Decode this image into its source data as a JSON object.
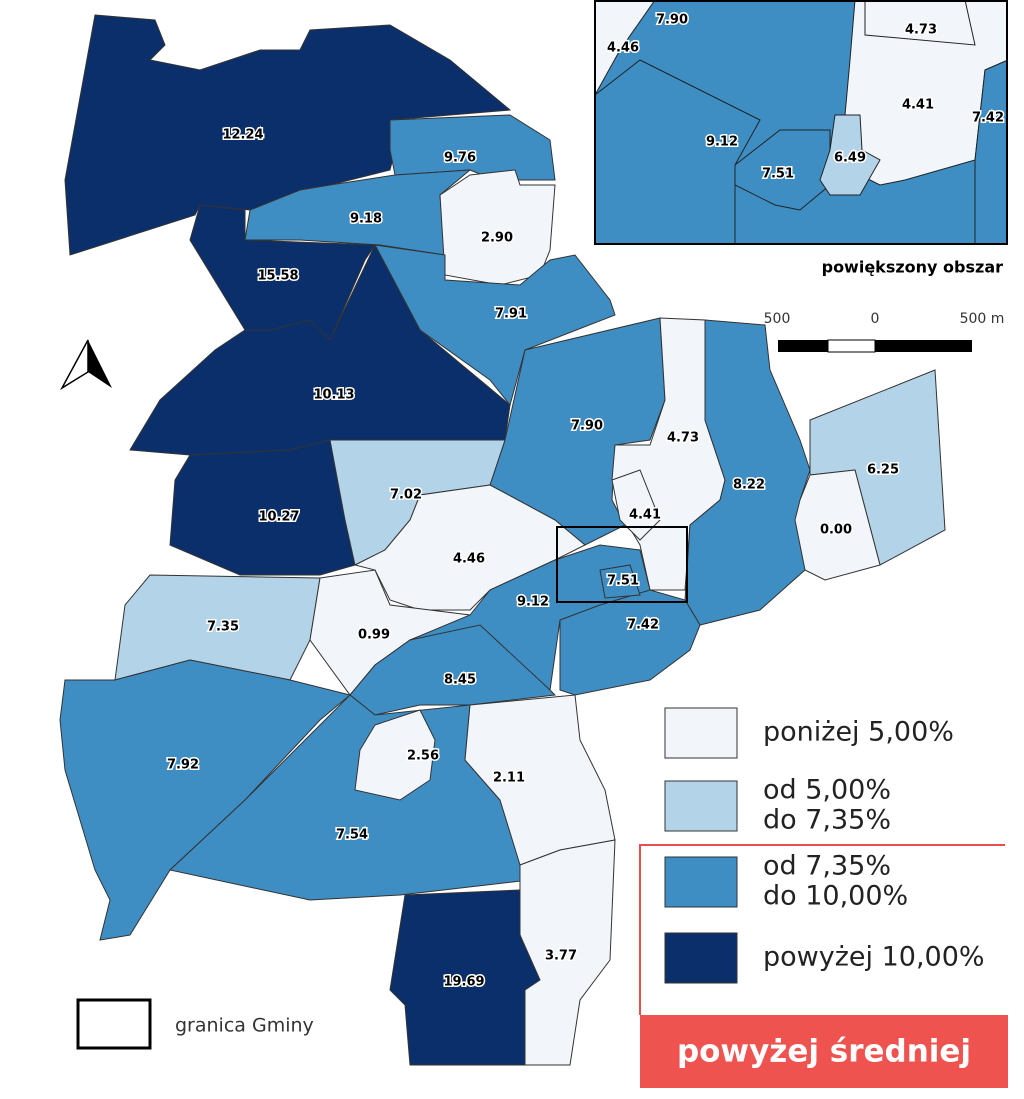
{
  "map": {
    "regions": [
      {
        "label": "12.24",
        "color": "#0b2f6b"
      },
      {
        "label": "9.76",
        "color": "#3e8ec4"
      },
      {
        "label": "9.18",
        "color": "#3e8ec4"
      },
      {
        "label": "2.90",
        "color": "#f2f6fb"
      },
      {
        "label": "15.58",
        "color": "#0b2f6b"
      },
      {
        "label": "7.91",
        "color": "#3e8ec4"
      },
      {
        "label": "10.13",
        "color": "#0b2f6b"
      },
      {
        "label": "7.90",
        "color": "#3e8ec4"
      },
      {
        "label": "4.73",
        "color": "#f2f6fb"
      },
      {
        "label": "8.22",
        "color": "#3e8ec4"
      },
      {
        "label": "6.25",
        "color": "#b3d3e8"
      },
      {
        "label": "0.00",
        "color": "#f2f6fb"
      },
      {
        "label": "10.27",
        "color": "#0b2f6b"
      },
      {
        "label": "7.02",
        "color": "#b3d3e8"
      },
      {
        "label": "4.46",
        "color": "#f2f6fb"
      },
      {
        "label": "7.35",
        "color": "#b3d3e8"
      },
      {
        "label": "0.99",
        "color": "#f2f6fb"
      },
      {
        "label": "9.12",
        "color": "#3e8ec4"
      },
      {
        "label": "7.42",
        "color": "#3e8ec4"
      },
      {
        "label": "8.45",
        "color": "#3e8ec4"
      },
      {
        "label": "7.92",
        "color": "#3e8ec4"
      },
      {
        "label": "7.54",
        "color": "#3e8ec4"
      },
      {
        "label": "2.56",
        "color": "#f2f6fb"
      },
      {
        "label": "2.11",
        "color": "#f2f6fb"
      },
      {
        "label": "3.77",
        "color": "#f2f6fb"
      },
      {
        "label": "19.69",
        "color": "#0b2f6b"
      },
      {
        "label": "4.41",
        "color": "#f2f6fb"
      },
      {
        "label": "7.51",
        "color": "#3e8ec4"
      }
    ],
    "inset": {
      "title": "powiększony obszar",
      "regions": [
        {
          "label": "7.90",
          "color": "#3e8ec4"
        },
        {
          "label": "4.46",
          "color": "#f2f6fb"
        },
        {
          "label": "4.41",
          "color": "#f2f6fb"
        },
        {
          "label": "4.73",
          "color": "#f2f6fb"
        },
        {
          "label": "7.42",
          "color": "#3e8ec4"
        },
        {
          "label": "9.12",
          "color": "#3e8ec4"
        },
        {
          "label": "7.51",
          "color": "#3e8ec4"
        },
        {
          "label": "6.49",
          "color": "#b3d3e8"
        }
      ]
    },
    "scale_bar": {
      "labels": [
        "500",
        "0",
        "500 m"
      ]
    },
    "legend": {
      "items": [
        {
          "lines": [
            "poniżej 5,00%"
          ],
          "color": "#f2f6fb"
        },
        {
          "lines": [
            "od 5,00%",
            "do 7,35%"
          ],
          "color": "#b3d3e8"
        },
        {
          "lines": [
            "od 7,35%",
            "do 10,00%"
          ],
          "color": "#3e8ec4"
        },
        {
          "lines": [
            "powyżej 10,00%"
          ],
          "color": "#0b2f6b"
        }
      ],
      "boundary": "granica Gminy",
      "highlight": "powyżej średniej"
    }
  }
}
